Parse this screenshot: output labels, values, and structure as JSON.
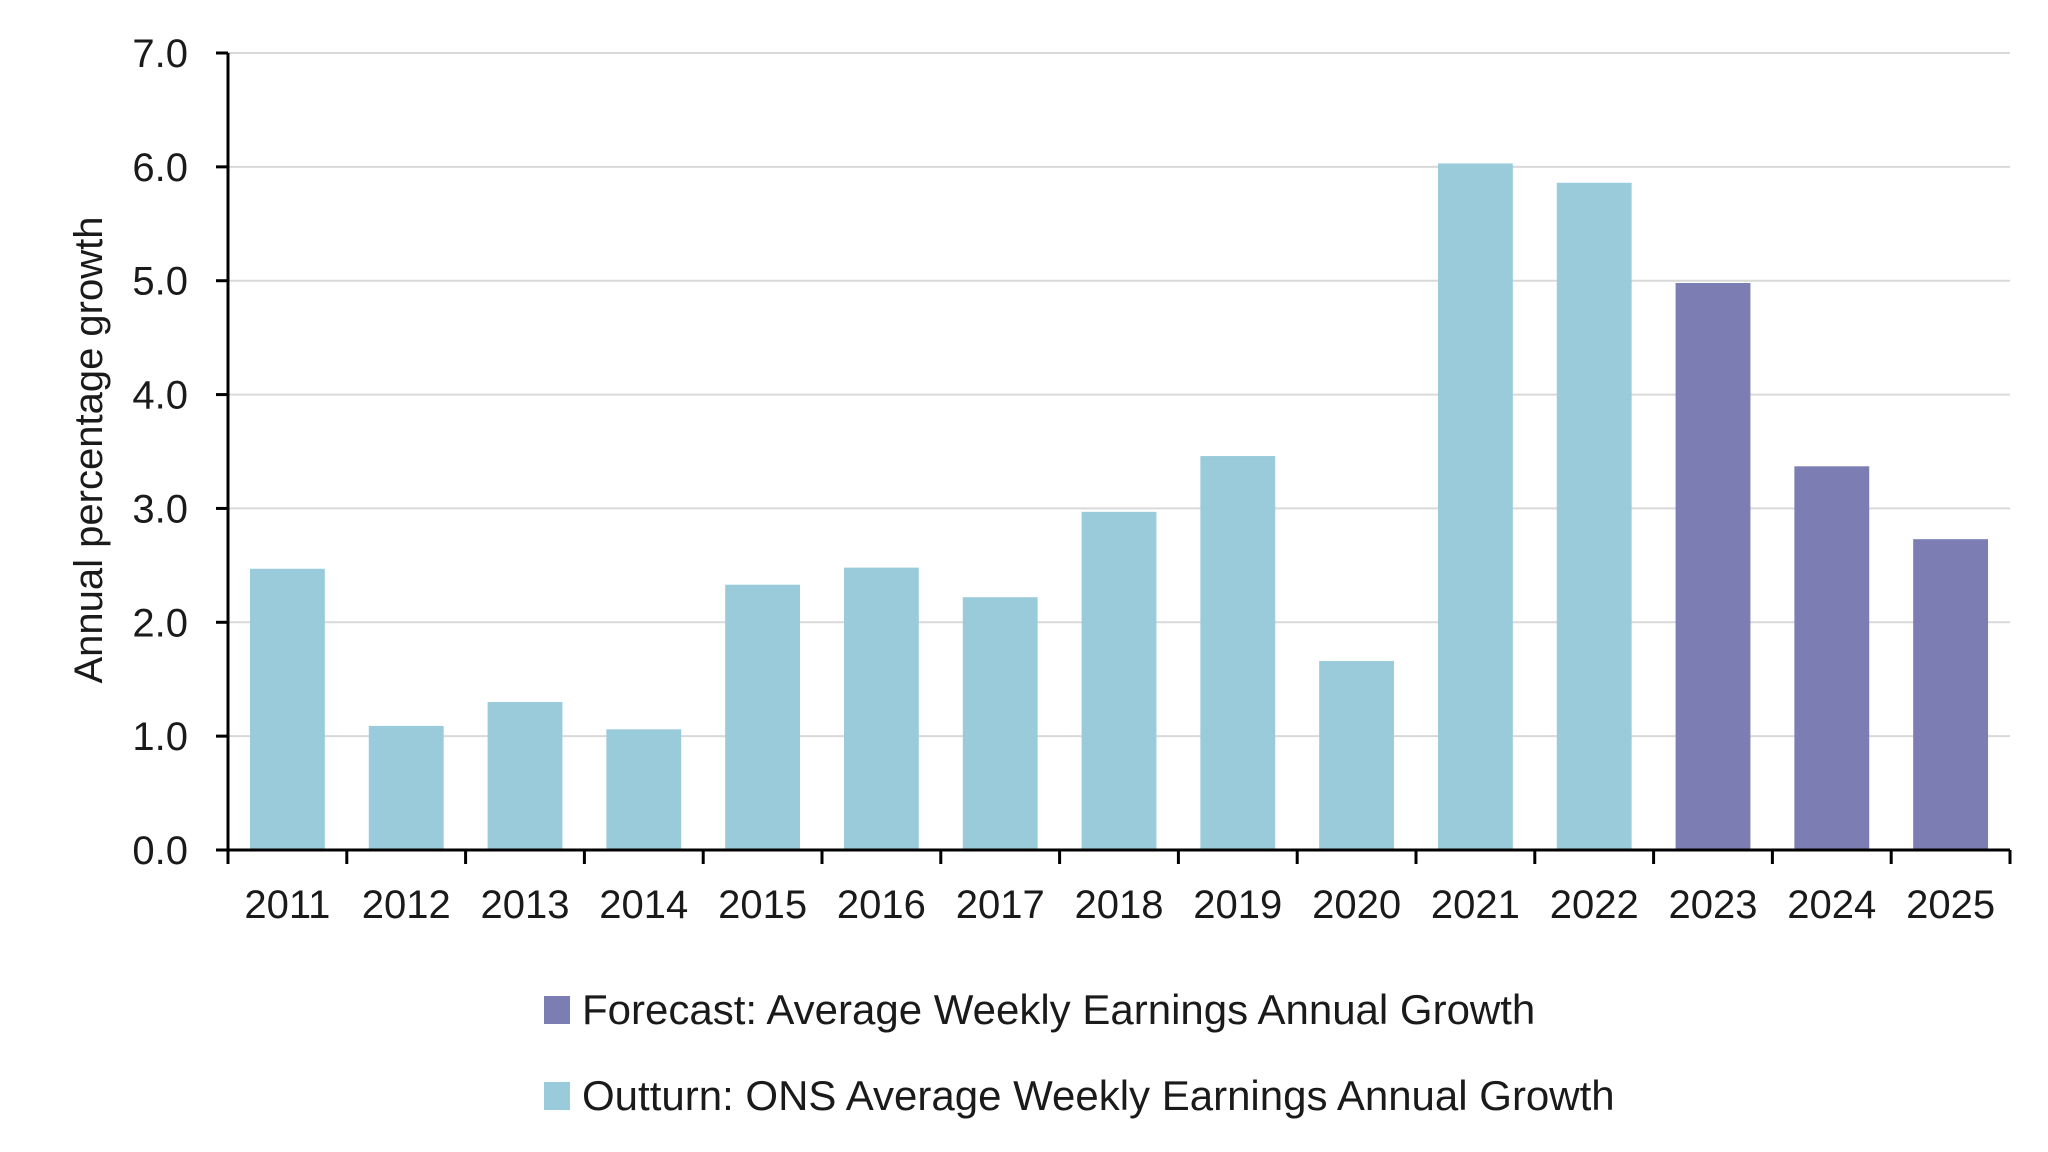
{
  "chart_data": {
    "type": "bar",
    "title": "",
    "xlabel": "",
    "ylabel": "Annual percentage growth",
    "ylim": [
      0,
      7
    ],
    "yticks": [
      "0.0",
      "1.0",
      "2.0",
      "3.0",
      "4.0",
      "5.0",
      "6.0",
      "7.0"
    ],
    "grid": true,
    "legend_position": "bottom",
    "categories": [
      "2011",
      "2012",
      "2013",
      "2014",
      "2015",
      "2016",
      "2017",
      "2018",
      "2019",
      "2020",
      "2021",
      "2022",
      "2023",
      "2024",
      "2025"
    ],
    "series": [
      {
        "name": "Outturn: ONS Average Weekly Earnings Annual Growth",
        "color": "#99cbdb",
        "values": [
          2.47,
          1.09,
          1.3,
          1.06,
          2.33,
          2.48,
          2.22,
          2.97,
          3.46,
          1.66,
          6.03,
          5.86,
          null,
          null,
          null
        ]
      },
      {
        "name": "Forecast: Average Weekly Earnings Annual Growth",
        "color": "#7c7eb3",
        "values": [
          null,
          null,
          null,
          null,
          null,
          null,
          null,
          null,
          null,
          null,
          null,
          null,
          4.98,
          3.37,
          2.73
        ]
      }
    ]
  }
}
